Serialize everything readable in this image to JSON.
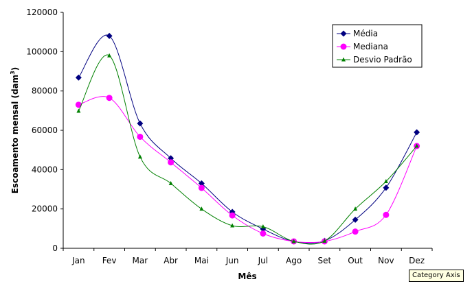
{
  "chart_data": {
    "type": "line",
    "categories": [
      "Jan",
      "Fev",
      "Mar",
      "Abr",
      "Mai",
      "Jun",
      "Jul",
      "Ago",
      "Set",
      "Out",
      "Nov",
      "Dez"
    ],
    "series": [
      {
        "name": "Média",
        "color": "#000080",
        "marker": "diamond",
        "values": [
          86800,
          108000,
          63500,
          45800,
          33000,
          18500,
          9800,
          3500,
          3800,
          14500,
          30800,
          59000
        ]
      },
      {
        "name": "Mediana",
        "color": "#ff00ff",
        "marker": "circle",
        "values": [
          73000,
          76500,
          56700,
          43700,
          30700,
          16700,
          7500,
          3500,
          3500,
          8500,
          17000,
          52000
        ]
      },
      {
        "name": "Desvio Padrão",
        "color": "#008000",
        "marker": "triangle",
        "values": [
          69800,
          98000,
          46500,
          33000,
          20000,
          11500,
          11000,
          3500,
          3700,
          20000,
          34000,
          52000
        ]
      }
    ],
    "ylim": [
      0,
      120000
    ],
    "yticks": [
      "0",
      "20000",
      "40000",
      "60000",
      "80000",
      "100000",
      "120000"
    ],
    "ylabel_main": "Escoamento mensal (dam",
    "ylabel_sup": "3",
    "ylabel_close": ")",
    "xlabel": "Mês",
    "grid": false,
    "legend_position": "top-right"
  },
  "tooltip": {
    "text": "Category Axis"
  }
}
